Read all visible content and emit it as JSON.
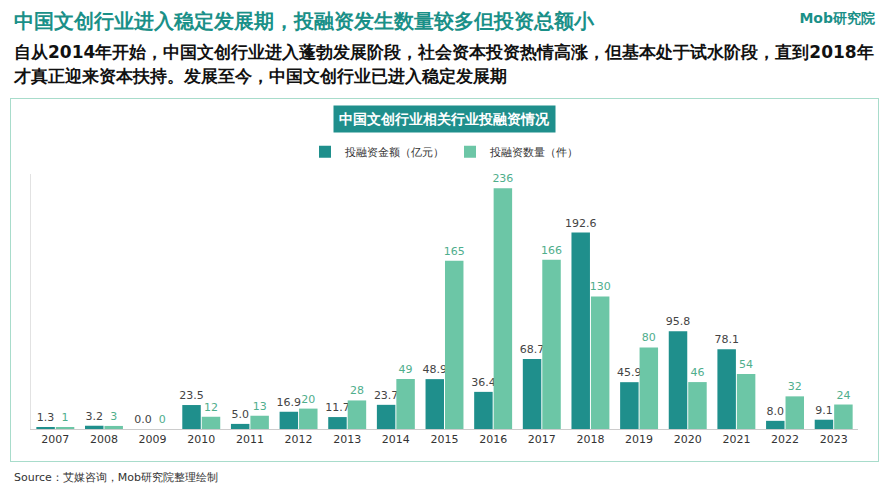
{
  "title": "中国文创行业进入稳定发展期，投融资发生数量较多但投资总额小",
  "brand": "Mob研究院",
  "subtitle": "自从2014年开始，中国文创行业进入蓬勃发展阶段，社会资本投资热情高涨，但基本处于试水阶段，直到2018年才真正迎来资本扶持。发展至今，中国文创行业已进入稳定发展期",
  "source": "Source：艾媒咨询，Mob研究院整理绘制",
  "chart_data": {
    "type": "bar",
    "title": "中国文创行业相关行业投融资情况",
    "categories": [
      "2007",
      "2008",
      "2009",
      "2010",
      "2011",
      "2012",
      "2013",
      "2014",
      "2015",
      "2016",
      "2017",
      "2018",
      "2019",
      "2020",
      "2021",
      "2022",
      "2023"
    ],
    "series": [
      {
        "name": "投融资金额（亿元）",
        "color": "#1f8f8c",
        "values": [
          1.3,
          3.2,
          0.0,
          23.5,
          5.0,
          16.9,
          11.7,
          23.7,
          48.9,
          36.4,
          68.7,
          192.6,
          45.9,
          95.8,
          78.1,
          8.0,
          9.1
        ],
        "value_labels": [
          "1.3",
          "3.2",
          "0.0",
          "23.5",
          "5.0",
          "16.9",
          "11.7",
          "23.7",
          "48.9",
          "36.4",
          "68.7",
          "192.6",
          "45.9",
          "95.8",
          "78.1",
          "8.0",
          "9.1"
        ]
      },
      {
        "name": "投融资数量（件）",
        "color": "#6cc6a6",
        "values": [
          1,
          3,
          0,
          12,
          13,
          20,
          28,
          49,
          165,
          236,
          166,
          130,
          80,
          46,
          54,
          32,
          24
        ]
      }
    ],
    "ylim": [
      0,
      250
    ],
    "yticks": [],
    "tick_labels": "x",
    "grid": false,
    "legend": "top",
    "data_labels": true
  }
}
